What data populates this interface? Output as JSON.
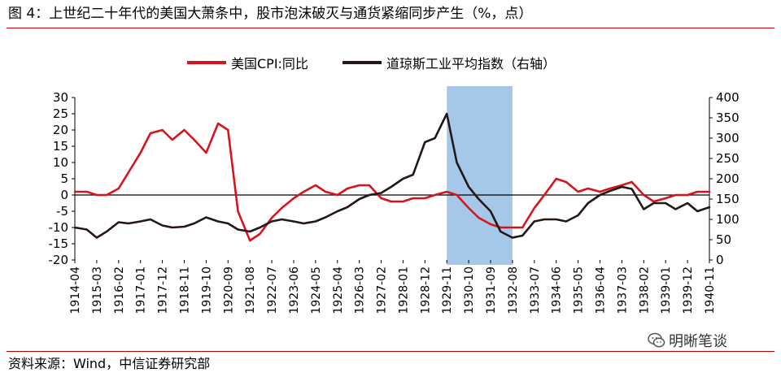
{
  "title": "图 4：上世纪二十年代的美国大萧条中，股市泡沫破灭与通货紧缩同步产生（%，点）",
  "source": "资料来源：Wind，中信证券研究部",
  "watermark": {
    "text": "明晰笔谈",
    "icon": "wechat-icon"
  },
  "colors": {
    "cpi": "#d7141c",
    "dow": "#231815",
    "highlight": "#a6c8e8",
    "rule": "#c00000"
  },
  "chart_data": {
    "type": "line",
    "title": "",
    "xlabel": "",
    "ylabel": "",
    "legend_position": "top",
    "grid": false,
    "ylim_left": [
      -20,
      30
    ],
    "ylim_right": [
      0,
      400
    ],
    "yticks_left": [
      -20,
      -15,
      -10,
      -5,
      0,
      5,
      10,
      15,
      20,
      25,
      30
    ],
    "yticks_right": [
      0,
      50,
      100,
      150,
      200,
      250,
      300,
      350,
      400
    ],
    "x_ticks": [
      "1914-04",
      "1915-03",
      "1916-02",
      "1917-01",
      "1917-12",
      "1918-11",
      "1919-10",
      "1920-09",
      "1921-08",
      "1922-07",
      "1923-06",
      "1924-05",
      "1925-04",
      "1926-03",
      "1927-02",
      "1928-01",
      "1928-12",
      "1929-11",
      "1930-10",
      "1931-09",
      "1932-08",
      "1933-07",
      "1934-06",
      "1935-05",
      "1936-04",
      "1937-03",
      "1938-02",
      "1939-01",
      "1939-12",
      "1940-11"
    ],
    "highlight_range": [
      "1929-11",
      "1932-08"
    ],
    "series": [
      {
        "name": "美国CPI:同比",
        "axis": "left",
        "x": [
          "1914-04",
          "1914-10",
          "1915-03",
          "1915-08",
          "1916-02",
          "1916-07",
          "1917-01",
          "1917-06",
          "1917-12",
          "1918-05",
          "1918-11",
          "1919-04",
          "1919-10",
          "1920-04",
          "1920-09",
          "1921-02",
          "1921-08",
          "1922-01",
          "1922-07",
          "1922-12",
          "1923-06",
          "1923-11",
          "1924-05",
          "1924-10",
          "1925-04",
          "1925-09",
          "1926-03",
          "1926-08",
          "1927-02",
          "1927-07",
          "1928-01",
          "1928-06",
          "1928-12",
          "1929-05",
          "1929-11",
          "1930-04",
          "1930-10",
          "1931-03",
          "1931-09",
          "1932-02",
          "1932-08",
          "1933-01",
          "1933-07",
          "1933-12",
          "1934-06",
          "1934-11",
          "1935-05",
          "1935-10",
          "1936-04",
          "1936-09",
          "1937-03",
          "1937-08",
          "1938-02",
          "1938-07",
          "1939-01",
          "1939-06",
          "1939-12",
          "1940-05",
          "1940-11"
        ],
        "values": [
          1,
          1,
          0,
          0,
          2,
          7,
          13,
          19,
          20,
          17,
          20,
          17,
          13,
          22,
          20,
          -5,
          -14,
          -12,
          -7,
          -4,
          -1,
          1,
          3,
          1,
          0,
          2,
          3,
          3,
          -1,
          -2,
          -2,
          -1,
          -1,
          0,
          1,
          0,
          -4,
          -7,
          -9,
          -10,
          -10,
          -10,
          -4,
          0,
          5,
          4,
          1,
          2,
          1,
          2,
          3,
          4,
          0,
          -2,
          -1,
          0,
          0,
          1,
          1
        ]
      },
      {
        "name": "道琼斯工业平均指数（右轴）",
        "axis": "right",
        "x": [
          "1914-04",
          "1914-10",
          "1915-03",
          "1915-08",
          "1916-02",
          "1916-07",
          "1917-01",
          "1917-06",
          "1917-12",
          "1918-05",
          "1918-11",
          "1919-04",
          "1919-10",
          "1920-04",
          "1920-09",
          "1921-02",
          "1921-08",
          "1922-01",
          "1922-07",
          "1922-12",
          "1923-06",
          "1923-11",
          "1924-05",
          "1924-10",
          "1925-04",
          "1925-09",
          "1926-03",
          "1926-08",
          "1927-02",
          "1927-07",
          "1928-01",
          "1928-06",
          "1928-12",
          "1929-05",
          "1929-11",
          "1930-04",
          "1930-10",
          "1931-03",
          "1931-09",
          "1932-02",
          "1932-08",
          "1933-01",
          "1933-07",
          "1933-12",
          "1934-06",
          "1934-11",
          "1935-05",
          "1935-10",
          "1936-04",
          "1936-09",
          "1937-03",
          "1937-08",
          "1938-02",
          "1938-07",
          "1939-01",
          "1939-06",
          "1939-12",
          "1940-05",
          "1940-11"
        ],
        "values": [
          80,
          75,
          55,
          70,
          93,
          90,
          95,
          100,
          85,
          80,
          82,
          90,
          105,
          95,
          90,
          75,
          70,
          80,
          95,
          100,
          95,
          90,
          95,
          105,
          120,
          130,
          150,
          160,
          165,
          180,
          200,
          210,
          290,
          300,
          360,
          240,
          180,
          150,
          120,
          70,
          55,
          60,
          95,
          100,
          100,
          95,
          110,
          140,
          160,
          170,
          180,
          175,
          125,
          140,
          140,
          125,
          140,
          120,
          130
        ]
      }
    ]
  }
}
